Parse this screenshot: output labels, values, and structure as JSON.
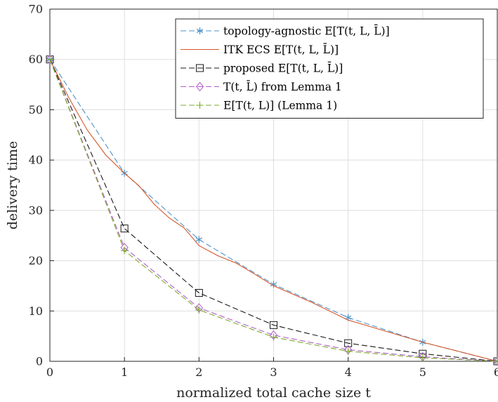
{
  "chart_data": {
    "type": "line",
    "title": "",
    "xlabel": "normalized total cache size t",
    "ylabel": "delivery time",
    "xlim": [
      0,
      6
    ],
    "ylim": [
      0,
      70
    ],
    "xticks": [
      "0",
      "1",
      "2",
      "3",
      "4",
      "5",
      "6"
    ],
    "yticks": [
      "0",
      "10",
      "20",
      "30",
      "40",
      "50",
      "60",
      "70"
    ],
    "grid": true,
    "legend_position": "top-right",
    "series": [
      {
        "name": "topology-agnostic E[T(t, L, L̄)]",
        "color": "#4f93c9",
        "line": "dashed",
        "marker": "asterisk",
        "x": [
          0,
          1,
          2,
          3,
          4,
          5,
          6
        ],
        "y": [
          60,
          37.4,
          24.2,
          15.3,
          8.7,
          3.8,
          0
        ]
      },
      {
        "name": "ITK ECS E[T(t, L, L̄)]",
        "color": "#d6562b",
        "line": "solid",
        "marker": "none",
        "x": [
          0,
          0.25,
          0.5,
          0.75,
          1,
          1.2,
          1.4,
          1.6,
          1.8,
          2,
          2.25,
          2.5,
          2.75,
          3,
          3.5,
          4,
          4.5,
          5,
          5.5,
          6
        ],
        "y": [
          60,
          52.5,
          46,
          41,
          37.4,
          34.8,
          31.2,
          28.5,
          26.5,
          23,
          21,
          19.5,
          17.3,
          15,
          11.8,
          8.2,
          6,
          3.8,
          1.9,
          0
        ]
      },
      {
        "name": "proposed E[T(t, L, L̄)]",
        "color": "#1a1a1a",
        "line": "dashed",
        "marker": "square",
        "x": [
          0,
          1,
          2,
          3,
          4,
          5,
          6
        ],
        "y": [
          60,
          26.4,
          13.6,
          7.2,
          3.6,
          1.5,
          0
        ]
      },
      {
        "name": "T(t, L̄) from Lemma 1",
        "color": "#b060c8",
        "line": "dashed",
        "marker": "diamond",
        "x": [
          0,
          1,
          2,
          3,
          4,
          5,
          6
        ],
        "y": [
          60,
          22.6,
          10.6,
          5.2,
          2.3,
          0.9,
          0
        ]
      },
      {
        "name": "E[T(t, L)] (Lemma 1)",
        "color": "#7cab2c",
        "line": "dashed",
        "marker": "plus",
        "x": [
          0,
          1,
          2,
          3,
          4,
          5,
          6
        ],
        "y": [
          60,
          22.0,
          10.2,
          4.8,
          2.0,
          0.7,
          0
        ]
      }
    ]
  }
}
